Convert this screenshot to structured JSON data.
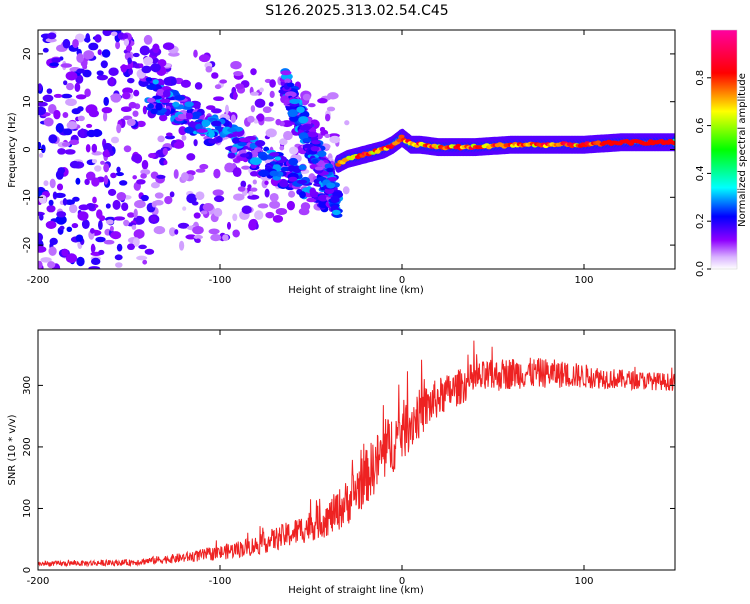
{
  "title": "S126.2025.313.02.54.C45",
  "chart_data": [
    {
      "type": "heatmap",
      "name": "spectrogram",
      "xlabel": "Height of straight line (km)",
      "ylabel": "Frequency (Hz)",
      "xlim": [
        -200,
        150
      ],
      "ylim": [
        -25,
        25
      ],
      "x_ticks": [
        -200,
        -100,
        0,
        100
      ],
      "x_tick_labels": [
        "-200",
        "-100",
        "0",
        "100"
      ],
      "y_ticks": [
        -20,
        -10,
        0,
        10,
        20
      ],
      "y_tick_labels": [
        "-20",
        "-10",
        "0",
        "10",
        "20"
      ],
      "colorbar": {
        "label": "Normalized spectral amplitude",
        "range": [
          0,
          1
        ],
        "ticks": [
          0,
          0.2,
          0.4,
          0.6,
          0.8
        ],
        "tick_labels": [
          "0.0",
          "0.2",
          "0.4",
          "0.6",
          "0.8"
        ],
        "colors": [
          "#ffffff",
          "#8f00ff",
          "#0000ff",
          "#00ffff",
          "#00ff00",
          "#ffff00",
          "#ff0000",
          "#ff00a0"
        ]
      },
      "ridge": {
        "description": "dominant frequency track",
        "x": [
          -35,
          -30,
          -20,
          -10,
          -5,
          0,
          5,
          10,
          20,
          40,
          60,
          80,
          100,
          120,
          150
        ],
        "y": [
          -3,
          -2,
          -1,
          0,
          1,
          2.5,
          1,
          1,
          0.5,
          0.5,
          1,
          1,
          1,
          1.5,
          1.5
        ],
        "amplitude": 0.85
      },
      "diagonal_bands": [
        {
          "x": [
            -140,
            -35
          ],
          "y": [
            12,
            -11
          ]
        },
        {
          "x": [
            -65,
            -35
          ],
          "y": [
            14,
            -11
          ]
        }
      ]
    },
    {
      "type": "line",
      "name": "snr",
      "xlabel": "Height of straight line (km)",
      "ylabel": "SNR (10 * v/v)",
      "xlim": [
        -200,
        150
      ],
      "ylim": [
        0,
        390
      ],
      "x_ticks": [
        -200,
        -100,
        0,
        100
      ],
      "x_tick_labels": [
        "-200",
        "-100",
        "0",
        "100"
      ],
      "y_ticks": [
        0,
        100,
        200,
        300
      ],
      "y_tick_labels": [
        "0",
        "100",
        "200",
        "300"
      ],
      "color": "#ee2222",
      "envelope": {
        "x": [
          -200,
          -150,
          -120,
          -100,
          -80,
          -60,
          -40,
          -30,
          -20,
          -10,
          0,
          10,
          20,
          40,
          60,
          80,
          100,
          120,
          150
        ],
        "mean": [
          10,
          12,
          20,
          28,
          40,
          60,
          85,
          110,
          150,
          190,
          225,
          255,
          280,
          310,
          320,
          320,
          315,
          310,
          305
        ],
        "noise": [
          4,
          5,
          8,
          12,
          16,
          22,
          30,
          38,
          45,
          50,
          50,
          40,
          32,
          28,
          26,
          24,
          20,
          16,
          14
        ]
      }
    }
  ]
}
